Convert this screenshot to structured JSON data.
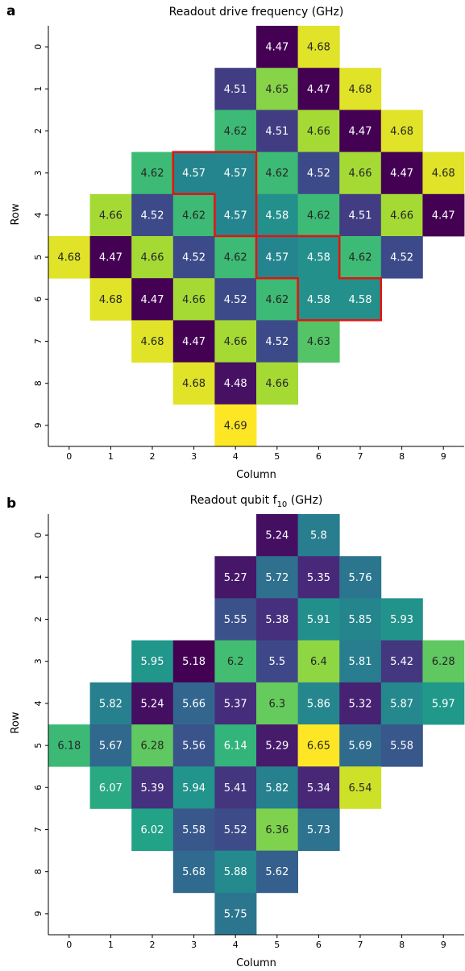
{
  "chart_data": [
    {
      "panel": "a",
      "type": "heatmap",
      "title": "Readout drive frequency (GHz)",
      "xlabel": "Column",
      "ylabel": "Row",
      "x_ticks": [
        "0",
        "1",
        "2",
        "3",
        "4",
        "5",
        "6",
        "7",
        "8",
        "9"
      ],
      "y_ticks": [
        "0",
        "1",
        "2",
        "3",
        "4",
        "5",
        "6",
        "7",
        "8",
        "9"
      ],
      "colormap": "viridis",
      "color_range": [
        4.47,
        4.69
      ],
      "highlight_color": "#e8120c",
      "highlight_cells": [
        [
          3,
          3
        ],
        [
          3,
          4
        ],
        [
          4,
          4
        ],
        [
          5,
          5
        ],
        [
          5,
          6
        ],
        [
          6,
          6
        ],
        [
          6,
          7
        ]
      ],
      "cells": [
        {
          "row": 0,
          "col": 5,
          "value": "4.47"
        },
        {
          "row": 0,
          "col": 6,
          "value": "4.68"
        },
        {
          "row": 1,
          "col": 4,
          "value": "4.51"
        },
        {
          "row": 1,
          "col": 5,
          "value": "4.65"
        },
        {
          "row": 1,
          "col": 6,
          "value": "4.47"
        },
        {
          "row": 1,
          "col": 7,
          "value": "4.68"
        },
        {
          "row": 2,
          "col": 4,
          "value": "4.62"
        },
        {
          "row": 2,
          "col": 5,
          "value": "4.51"
        },
        {
          "row": 2,
          "col": 6,
          "value": "4.66"
        },
        {
          "row": 2,
          "col": 7,
          "value": "4.47"
        },
        {
          "row": 2,
          "col": 8,
          "value": "4.68"
        },
        {
          "row": 3,
          "col": 2,
          "value": "4.62"
        },
        {
          "row": 3,
          "col": 3,
          "value": "4.57"
        },
        {
          "row": 3,
          "col": 4,
          "value": "4.57"
        },
        {
          "row": 3,
          "col": 5,
          "value": "4.62"
        },
        {
          "row": 3,
          "col": 6,
          "value": "4.52"
        },
        {
          "row": 3,
          "col": 7,
          "value": "4.66"
        },
        {
          "row": 3,
          "col": 8,
          "value": "4.47"
        },
        {
          "row": 3,
          "col": 9,
          "value": "4.68"
        },
        {
          "row": 4,
          "col": 1,
          "value": "4.66"
        },
        {
          "row": 4,
          "col": 2,
          "value": "4.52"
        },
        {
          "row": 4,
          "col": 3,
          "value": "4.62"
        },
        {
          "row": 4,
          "col": 4,
          "value": "4.57"
        },
        {
          "row": 4,
          "col": 5,
          "value": "4.58"
        },
        {
          "row": 4,
          "col": 6,
          "value": "4.62"
        },
        {
          "row": 4,
          "col": 7,
          "value": "4.51"
        },
        {
          "row": 4,
          "col": 8,
          "value": "4.66"
        },
        {
          "row": 4,
          "col": 9,
          "value": "4.47"
        },
        {
          "row": 5,
          "col": 0,
          "value": "4.68"
        },
        {
          "row": 5,
          "col": 1,
          "value": "4.47"
        },
        {
          "row": 5,
          "col": 2,
          "value": "4.66"
        },
        {
          "row": 5,
          "col": 3,
          "value": "4.52"
        },
        {
          "row": 5,
          "col": 4,
          "value": "4.62"
        },
        {
          "row": 5,
          "col": 5,
          "value": "4.57"
        },
        {
          "row": 5,
          "col": 6,
          "value": "4.58"
        },
        {
          "row": 5,
          "col": 7,
          "value": "4.62"
        },
        {
          "row": 5,
          "col": 8,
          "value": "4.52"
        },
        {
          "row": 6,
          "col": 1,
          "value": "4.68"
        },
        {
          "row": 6,
          "col": 2,
          "value": "4.47"
        },
        {
          "row": 6,
          "col": 3,
          "value": "4.66"
        },
        {
          "row": 6,
          "col": 4,
          "value": "4.52"
        },
        {
          "row": 6,
          "col": 5,
          "value": "4.62"
        },
        {
          "row": 6,
          "col": 6,
          "value": "4.58"
        },
        {
          "row": 6,
          "col": 7,
          "value": "4.58"
        },
        {
          "row": 7,
          "col": 2,
          "value": "4.68"
        },
        {
          "row": 7,
          "col": 3,
          "value": "4.47"
        },
        {
          "row": 7,
          "col": 4,
          "value": "4.66"
        },
        {
          "row": 7,
          "col": 5,
          "value": "4.52"
        },
        {
          "row": 7,
          "col": 6,
          "value": "4.63"
        },
        {
          "row": 8,
          "col": 3,
          "value": "4.68"
        },
        {
          "row": 8,
          "col": 4,
          "value": "4.48"
        },
        {
          "row": 8,
          "col": 5,
          "value": "4.66"
        },
        {
          "row": 9,
          "col": 4,
          "value": "4.69"
        }
      ]
    },
    {
      "panel": "b",
      "type": "heatmap",
      "title": "Readout qubit f",
      "title_subscript": "10",
      "title_suffix": " (GHz)",
      "xlabel": "Column",
      "ylabel": "Row",
      "x_ticks": [
        "0",
        "1",
        "2",
        "3",
        "4",
        "5",
        "6",
        "7",
        "8",
        "9"
      ],
      "y_ticks": [
        "0",
        "1",
        "2",
        "3",
        "4",
        "5",
        "6",
        "7",
        "8",
        "9"
      ],
      "colormap": "viridis",
      "color_range": [
        5.18,
        6.65
      ],
      "highlight_cells": [],
      "cells": [
        {
          "row": 0,
          "col": 5,
          "value": "5.24"
        },
        {
          "row": 0,
          "col": 6,
          "value": "5.8"
        },
        {
          "row": 1,
          "col": 4,
          "value": "5.27"
        },
        {
          "row": 1,
          "col": 5,
          "value": "5.72"
        },
        {
          "row": 1,
          "col": 6,
          "value": "5.35"
        },
        {
          "row": 1,
          "col": 7,
          "value": "5.76"
        },
        {
          "row": 2,
          "col": 4,
          "value": "5.55"
        },
        {
          "row": 2,
          "col": 5,
          "value": "5.38"
        },
        {
          "row": 2,
          "col": 6,
          "value": "5.91"
        },
        {
          "row": 2,
          "col": 7,
          "value": "5.85"
        },
        {
          "row": 2,
          "col": 8,
          "value": "5.93"
        },
        {
          "row": 3,
          "col": 2,
          "value": "5.95"
        },
        {
          "row": 3,
          "col": 3,
          "value": "5.18"
        },
        {
          "row": 3,
          "col": 4,
          "value": "6.2"
        },
        {
          "row": 3,
          "col": 5,
          "value": "5.5"
        },
        {
          "row": 3,
          "col": 6,
          "value": "6.4"
        },
        {
          "row": 3,
          "col": 7,
          "value": "5.81"
        },
        {
          "row": 3,
          "col": 8,
          "value": "5.42"
        },
        {
          "row": 3,
          "col": 9,
          "value": "6.28"
        },
        {
          "row": 4,
          "col": 1,
          "value": "5.82"
        },
        {
          "row": 4,
          "col": 2,
          "value": "5.24"
        },
        {
          "row": 4,
          "col": 3,
          "value": "5.66"
        },
        {
          "row": 4,
          "col": 4,
          "value": "5.37"
        },
        {
          "row": 4,
          "col": 5,
          "value": "6.3"
        },
        {
          "row": 4,
          "col": 6,
          "value": "5.86"
        },
        {
          "row": 4,
          "col": 7,
          "value": "5.32"
        },
        {
          "row": 4,
          "col": 8,
          "value": "5.87"
        },
        {
          "row": 4,
          "col": 9,
          "value": "5.97"
        },
        {
          "row": 5,
          "col": 0,
          "value": "6.18"
        },
        {
          "row": 5,
          "col": 1,
          "value": "5.67"
        },
        {
          "row": 5,
          "col": 2,
          "value": "6.28"
        },
        {
          "row": 5,
          "col": 3,
          "value": "5.56"
        },
        {
          "row": 5,
          "col": 4,
          "value": "6.14"
        },
        {
          "row": 5,
          "col": 5,
          "value": "5.29"
        },
        {
          "row": 5,
          "col": 6,
          "value": "6.65"
        },
        {
          "row": 5,
          "col": 7,
          "value": "5.69"
        },
        {
          "row": 5,
          "col": 8,
          "value": "5.58"
        },
        {
          "row": 6,
          "col": 1,
          "value": "6.07"
        },
        {
          "row": 6,
          "col": 2,
          "value": "5.39"
        },
        {
          "row": 6,
          "col": 3,
          "value": "5.94"
        },
        {
          "row": 6,
          "col": 4,
          "value": "5.41"
        },
        {
          "row": 6,
          "col": 5,
          "value": "5.82"
        },
        {
          "row": 6,
          "col": 6,
          "value": "5.34"
        },
        {
          "row": 6,
          "col": 7,
          "value": "6.54"
        },
        {
          "row": 7,
          "col": 2,
          "value": "6.02"
        },
        {
          "row": 7,
          "col": 3,
          "value": "5.58"
        },
        {
          "row": 7,
          "col": 4,
          "value": "5.52"
        },
        {
          "row": 7,
          "col": 5,
          "value": "6.36"
        },
        {
          "row": 7,
          "col": 6,
          "value": "5.73"
        },
        {
          "row": 8,
          "col": 3,
          "value": "5.68"
        },
        {
          "row": 8,
          "col": 4,
          "value": "5.88"
        },
        {
          "row": 8,
          "col": 5,
          "value": "5.62"
        },
        {
          "row": 9,
          "col": 4,
          "value": "5.75"
        }
      ]
    }
  ]
}
